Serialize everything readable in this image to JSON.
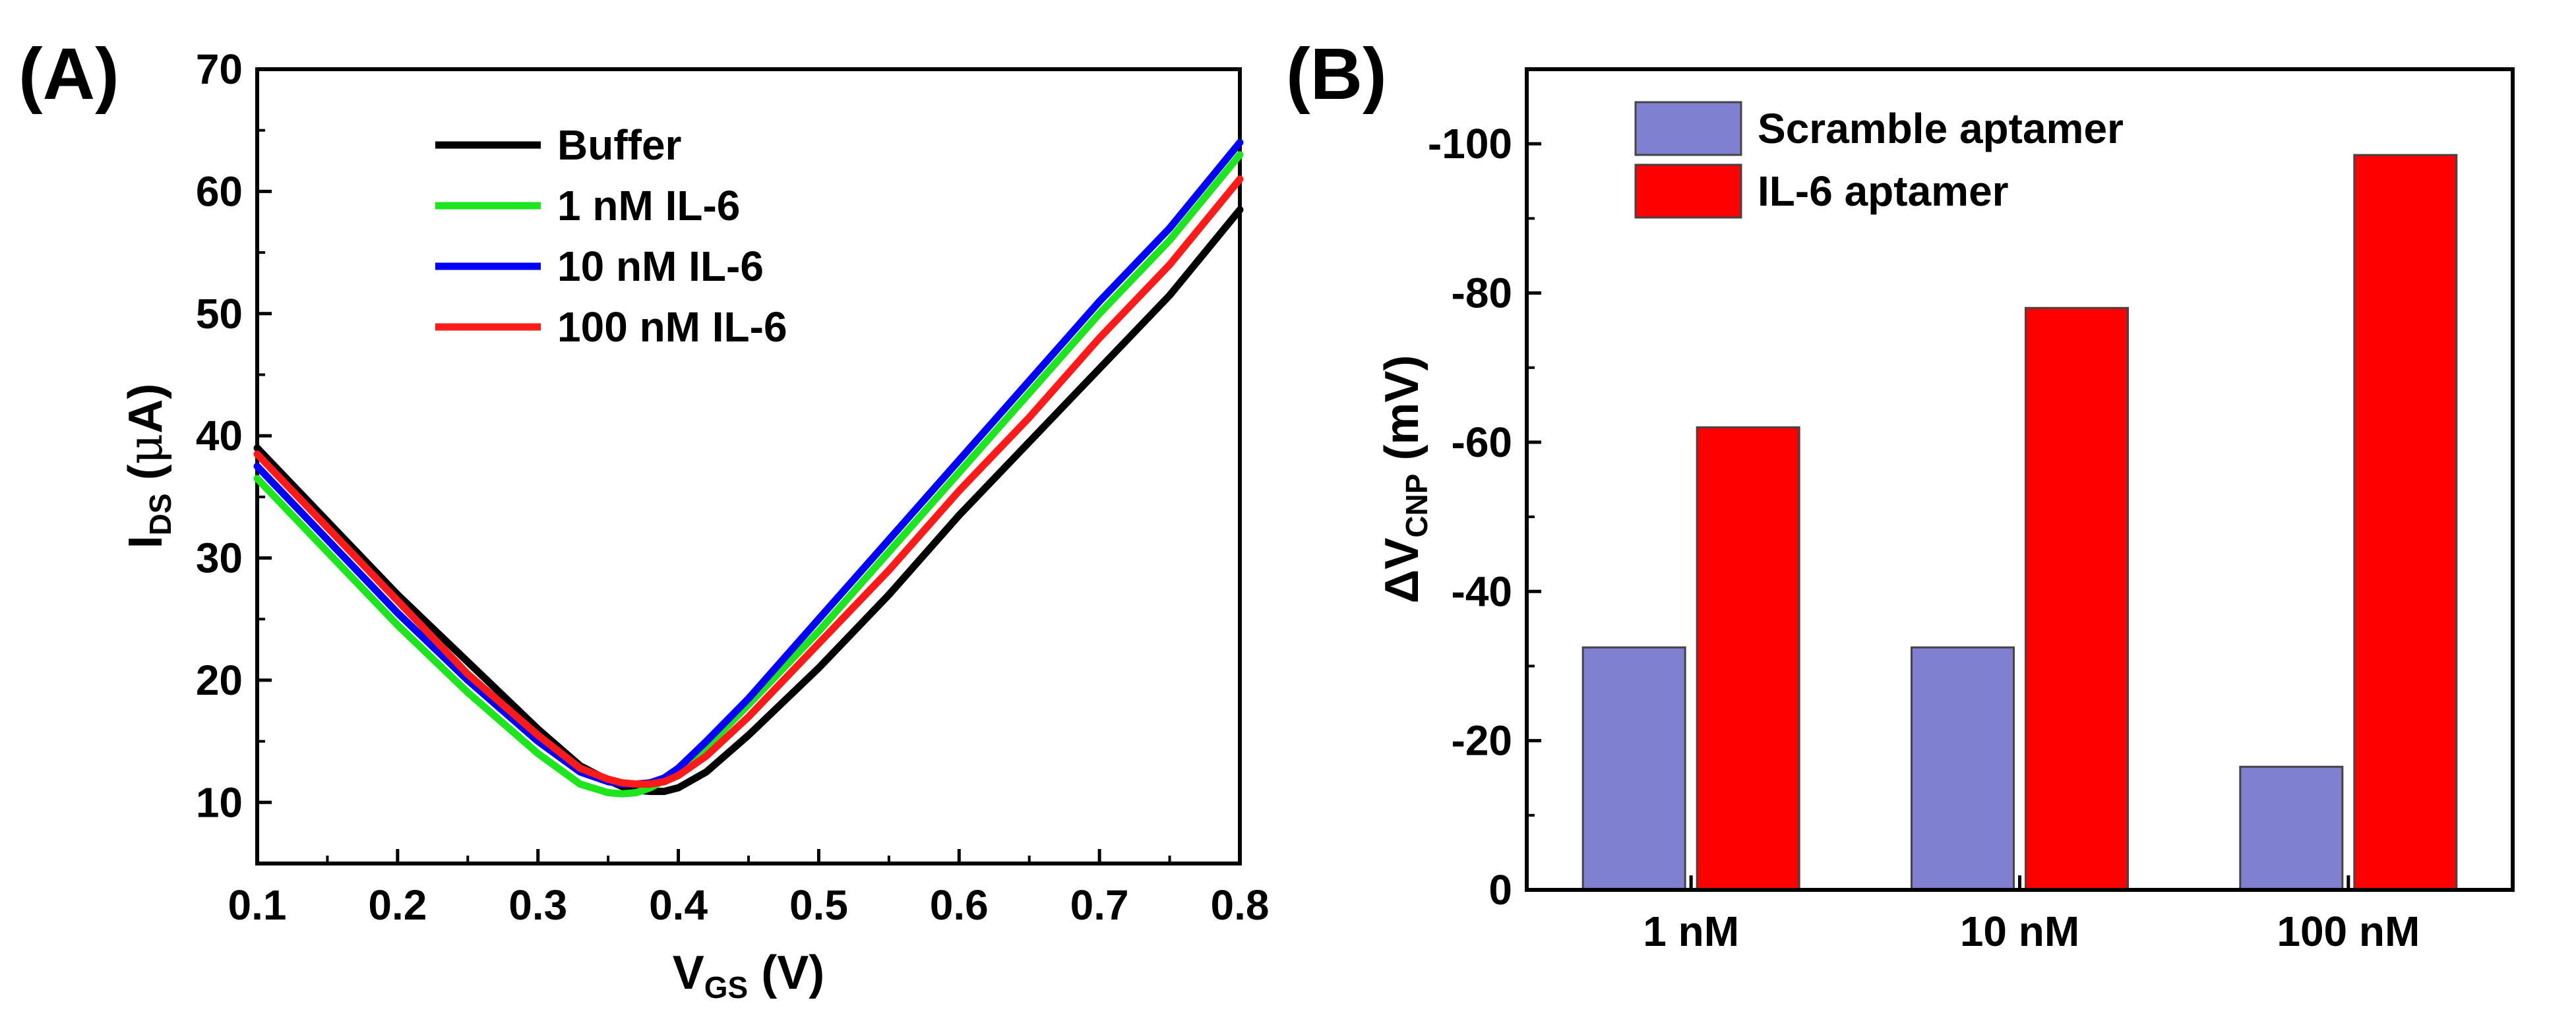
{
  "panel_a": {
    "label": "(A)"
  },
  "panel_b": {
    "label": "(B)"
  },
  "chart_data": [
    {
      "type": "line",
      "xlabel": "V",
      "xlabel_sub": "GS",
      "xlabel_unit": "(V)",
      "ylabel": "I",
      "ylabel_sub": "DS",
      "ylabel_unit_open": "(",
      "ylabel_unit_greek": "μ",
      "ylabel_unit_rest": "A)",
      "xlim": [
        0.1,
        0.8
      ],
      "ylim": [
        5,
        70
      ],
      "xticks": [
        "0.1",
        "0.2",
        "0.3",
        "0.4",
        "0.5",
        "0.6",
        "0.7",
        "0.8"
      ],
      "yticks": [
        "10",
        "20",
        "30",
        "40",
        "50",
        "60",
        "70"
      ],
      "x": [
        0.1,
        0.15,
        0.2,
        0.25,
        0.3,
        0.33,
        0.35,
        0.36,
        0.37,
        0.38,
        0.39,
        0.4,
        0.42,
        0.45,
        0.5,
        0.55,
        0.6,
        0.65,
        0.7,
        0.75,
        0.8
      ],
      "legend_position": "top-left",
      "series": [
        {
          "name": "Buffer",
          "color": "#000000",
          "values": [
            39.0,
            33.0,
            27.0,
            21.5,
            16.0,
            13.0,
            11.8,
            11.3,
            11.0,
            10.9,
            10.9,
            11.2,
            12.5,
            15.5,
            21.0,
            27.0,
            33.5,
            39.5,
            45.5,
            51.5,
            58.5
          ]
        },
        {
          "name": "1 nM IL-6",
          "color": "#1ee61e",
          "values": [
            36.5,
            30.5,
            24.5,
            19.0,
            14.0,
            11.5,
            10.8,
            10.7,
            10.8,
            11.2,
            11.8,
            12.5,
            14.5,
            18.0,
            24.0,
            30.5,
            37.0,
            43.5,
            50.0,
            56.0,
            63.0
          ]
        },
        {
          "name": "10 nM IL-6",
          "color": "#0000ff",
          "values": [
            37.5,
            31.5,
            25.5,
            20.0,
            15.0,
            12.5,
            11.7,
            11.5,
            11.5,
            11.6,
            12.0,
            12.8,
            15.0,
            18.5,
            25.0,
            31.5,
            38.0,
            44.5,
            51.0,
            57.0,
            64.0
          ]
        },
        {
          "name": "100 nM IL-6",
          "color": "#ff1a1a",
          "values": [
            38.5,
            32.5,
            26.5,
            20.5,
            15.5,
            12.8,
            11.9,
            11.6,
            11.5,
            11.5,
            11.7,
            12.2,
            13.8,
            17.0,
            23.0,
            29.0,
            35.5,
            41.5,
            48.0,
            54.0,
            61.0
          ]
        }
      ]
    },
    {
      "type": "bar",
      "categories": [
        "1 nM",
        "10 nM",
        "100 nM"
      ],
      "ylabel": "ΔV",
      "ylabel_sub": "CNP",
      "ylabel_unit": "(mV)",
      "ylim": [
        0,
        -110
      ],
      "yticks": [
        "0",
        "-20",
        "-40",
        "-60",
        "-80",
        "-100"
      ],
      "legend_position": "top-left",
      "series": [
        {
          "name": "Scramble aptamer",
          "color": "#8080d0",
          "values": [
            -32.5,
            -32.5,
            -16.5
          ]
        },
        {
          "name": "IL-6 aptamer",
          "color": "#ff0000",
          "values": [
            -62,
            -78,
            -98.5
          ]
        }
      ]
    }
  ]
}
